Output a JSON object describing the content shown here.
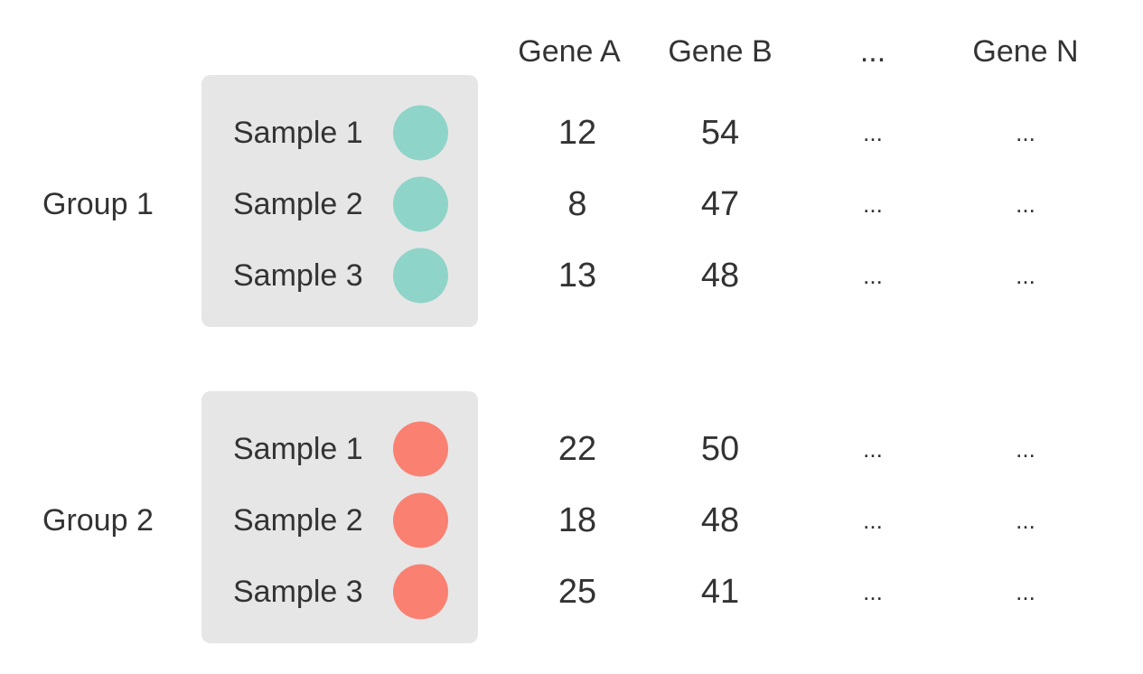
{
  "headers": [
    "Gene A",
    "Gene B",
    "...",
    "Gene N"
  ],
  "groups": [
    {
      "label": "Group 1",
      "color": "#8fd4c8",
      "samples": [
        {
          "label": "Sample 1",
          "values": [
            "12",
            "54",
            "...",
            "..."
          ]
        },
        {
          "label": "Sample 2",
          "values": [
            "8",
            "47",
            "...",
            "..."
          ]
        },
        {
          "label": "Sample 3",
          "values": [
            "13",
            "48",
            "...",
            "..."
          ]
        }
      ]
    },
    {
      "label": "Group 2",
      "color": "#fa8072",
      "samples": [
        {
          "label": "Sample 1",
          "values": [
            "22",
            "50",
            "...",
            "..."
          ]
        },
        {
          "label": "Sample 2",
          "values": [
            "18",
            "48",
            "...",
            "..."
          ]
        },
        {
          "label": "Sample 3",
          "values": [
            "25",
            "41",
            "...",
            "..."
          ]
        }
      ]
    }
  ]
}
